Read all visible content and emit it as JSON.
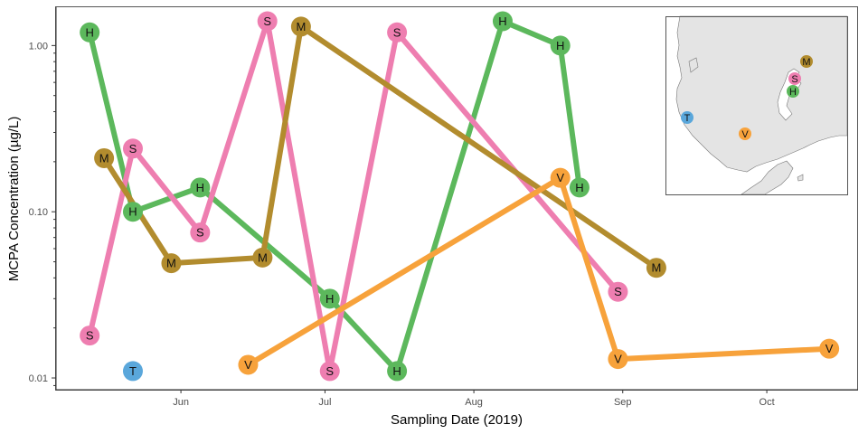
{
  "chart_data": {
    "type": "line",
    "xlabel": "Sampling Date (2019)",
    "ylabel": "MCPA Concentration (µg/L)",
    "yscale": "log",
    "ylim": [
      0.0085,
      1.7
    ],
    "xlim": [
      "2019-05-06",
      "2019-10-20"
    ],
    "x_ticks": [
      {
        "label": "Jun",
        "date": "2019-06-01"
      },
      {
        "label": "Jul",
        "date": "2019-07-01"
      },
      {
        "label": "Aug",
        "date": "2019-08-01"
      },
      {
        "label": "Sep",
        "date": "2019-09-01"
      },
      {
        "label": "Oct",
        "date": "2019-10-01"
      }
    ],
    "y_ticks": [
      {
        "label": "0.01",
        "value": 0.01
      },
      {
        "label": "0.10",
        "value": 0.1
      },
      {
        "label": "1.00",
        "value": 1.0
      }
    ],
    "grid": false,
    "legend": "none",
    "series": [
      {
        "id": "H",
        "color": "#5cb85c",
        "points": [
          {
            "date": "2019-05-13",
            "value": 1.2
          },
          {
            "date": "2019-05-22",
            "value": 0.1
          },
          {
            "date": "2019-06-05",
            "value": 0.14
          },
          {
            "date": "2019-07-02",
            "value": 0.03
          },
          {
            "date": "2019-07-16",
            "value": 0.011
          },
          {
            "date": "2019-08-07",
            "value": 1.4
          },
          {
            "date": "2019-08-19",
            "value": 1.0
          },
          {
            "date": "2019-08-23",
            "value": 0.14
          }
        ]
      },
      {
        "id": "S",
        "color": "#ee7eb0",
        "points": [
          {
            "date": "2019-05-13",
            "value": 0.018
          },
          {
            "date": "2019-05-22",
            "value": 0.24
          },
          {
            "date": "2019-06-05",
            "value": 0.075
          },
          {
            "date": "2019-06-19",
            "value": 1.4
          },
          {
            "date": "2019-07-02",
            "value": 0.011
          },
          {
            "date": "2019-07-16",
            "value": 1.2
          },
          {
            "date": "2019-08-31",
            "value": 0.033
          }
        ]
      },
      {
        "id": "M",
        "color": "#b28c2e",
        "points": [
          {
            "date": "2019-05-16",
            "value": 0.21
          },
          {
            "date": "2019-05-30",
            "value": 0.049
          },
          {
            "date": "2019-06-18",
            "value": 0.053
          },
          {
            "date": "2019-06-26",
            "value": 1.3
          },
          {
            "date": "2019-09-08",
            "value": 0.046
          }
        ]
      },
      {
        "id": "V",
        "color": "#f7a23b",
        "points": [
          {
            "date": "2019-06-15",
            "value": 0.012
          },
          {
            "date": "2019-08-19",
            "value": 0.16
          },
          {
            "date": "2019-08-31",
            "value": 0.013
          },
          {
            "date": "2019-10-14",
            "value": 0.015
          }
        ]
      },
      {
        "id": "T",
        "color": "#5aa7db",
        "points": [
          {
            "date": "2019-05-22",
            "value": 0.011
          }
        ]
      }
    ]
  },
  "inset_map": {
    "land_color": "#e4e4e4",
    "sea_color": "#ffffff",
    "stations": [
      {
        "id": "M",
        "color": "#b28c2e"
      },
      {
        "id": "S",
        "color": "#ee7eb0"
      },
      {
        "id": "H",
        "color": "#5cb85c"
      },
      {
        "id": "T",
        "color": "#5aa7db"
      },
      {
        "id": "V",
        "color": "#f7a23b"
      }
    ]
  }
}
